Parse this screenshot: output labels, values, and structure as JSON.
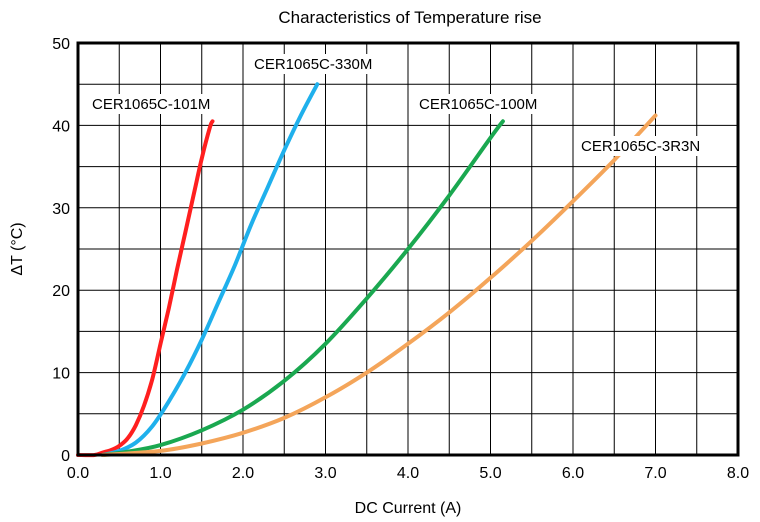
{
  "chart_data": {
    "type": "line",
    "title": "Characteristics of Temperature rise",
    "xlabel": "DC Current (A)",
    "ylabel": "ΔT (°C)",
    "xlim": [
      0,
      8
    ],
    "ylim": [
      0,
      50
    ],
    "xticks": [
      "0.0",
      "1.0",
      "2.0",
      "3.0",
      "4.0",
      "5.0",
      "6.0",
      "7.0",
      "8.0"
    ],
    "yticks": [
      "0",
      "10",
      "20",
      "30",
      "40",
      "50"
    ],
    "grid": true,
    "series": [
      {
        "name": "CER1065C-101M",
        "color": "#ff1f1f",
        "x": [
          0.0,
          0.2,
          0.3,
          0.4,
          0.5,
          0.6,
          0.7,
          0.8,
          0.9,
          1.0,
          1.1,
          1.2,
          1.3,
          1.4,
          1.5,
          1.6,
          1.63
        ],
        "y": [
          0.0,
          0.0,
          0.3,
          0.6,
          1.1,
          2.0,
          3.6,
          6.0,
          9.2,
          13.5,
          17.8,
          22.5,
          27.0,
          31.5,
          36.0,
          39.8,
          40.5
        ]
      },
      {
        "name": "CER1065C-330M",
        "color": "#1fb0ec",
        "x": [
          0.3,
          0.5,
          0.7,
          0.9,
          1.1,
          1.3,
          1.5,
          1.7,
          1.9,
          2.1,
          2.3,
          2.5,
          2.7,
          2.9
        ],
        "y": [
          0.0,
          0.5,
          1.5,
          3.5,
          6.5,
          10.0,
          14.0,
          18.5,
          23.0,
          28.0,
          32.5,
          37.0,
          41.2,
          45.0
        ]
      },
      {
        "name": "CER1065C-100M",
        "color": "#1aa850",
        "x": [
          0.3,
          0.6,
          1.0,
          1.5,
          2.0,
          2.5,
          3.0,
          3.5,
          4.0,
          4.5,
          5.0,
          5.15
        ],
        "y": [
          0.0,
          0.4,
          1.2,
          3.0,
          5.5,
          9.0,
          13.5,
          19.0,
          25.0,
          31.5,
          38.5,
          40.5
        ]
      },
      {
        "name": "CER1065C-3R3N",
        "color": "#f4a55a",
        "x": [
          0.3,
          1.0,
          1.5,
          2.0,
          2.5,
          3.0,
          3.5,
          4.0,
          4.5,
          5.0,
          5.5,
          6.0,
          6.5,
          7.0
        ],
        "y": [
          0.0,
          0.5,
          1.4,
          2.7,
          4.5,
          7.0,
          10.0,
          13.5,
          17.3,
          21.5,
          26.0,
          30.8,
          35.8,
          41.2
        ]
      }
    ]
  }
}
